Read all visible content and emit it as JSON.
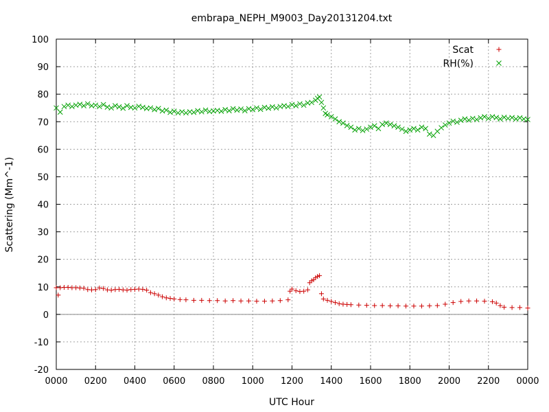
{
  "chart_data": {
    "type": "scatter",
    "title": "embrapa_NEPH_M9003_Day20131204.txt",
    "xlabel": "UTC Hour",
    "ylabel": "Scattering (Mm^-1)",
    "xlim": [
      0,
      24
    ],
    "ylim": [
      -20,
      100
    ],
    "x_ticks": [
      0,
      2,
      4,
      6,
      8,
      10,
      12,
      14,
      16,
      18,
      20,
      22,
      24
    ],
    "x_tick_labels": [
      "0000",
      "0200",
      "0400",
      "0600",
      "0800",
      "1000",
      "1200",
      "1400",
      "1600",
      "1800",
      "2000",
      "2200",
      "0000"
    ],
    "y_ticks": [
      -20,
      -10,
      0,
      10,
      20,
      30,
      40,
      50,
      60,
      70,
      80,
      90,
      100
    ],
    "y_tick_labels": [
      "-20",
      "-10",
      "0",
      "10",
      "20",
      "30",
      "40",
      "50",
      "60",
      "70",
      "80",
      "90",
      "100"
    ],
    "grid": true,
    "zero_line": true,
    "legend_position": "top-right",
    "series": [
      {
        "name": "Scat",
        "marker": "plus",
        "color": "#cc0000",
        "points": [
          [
            0.0,
            9.7
          ],
          [
            0.1,
            7.0
          ],
          [
            0.2,
            9.7
          ],
          [
            0.4,
            9.8
          ],
          [
            0.6,
            9.8
          ],
          [
            0.8,
            9.7
          ],
          [
            1.0,
            9.7
          ],
          [
            1.2,
            9.6
          ],
          [
            1.4,
            9.5
          ],
          [
            1.6,
            9.0
          ],
          [
            1.8,
            8.9
          ],
          [
            2.0,
            9.0
          ],
          [
            2.2,
            9.6
          ],
          [
            2.4,
            9.4
          ],
          [
            2.6,
            8.9
          ],
          [
            2.8,
            8.8
          ],
          [
            3.0,
            9.0
          ],
          [
            3.2,
            9.1
          ],
          [
            3.4,
            8.9
          ],
          [
            3.6,
            8.8
          ],
          [
            3.8,
            9.0
          ],
          [
            4.0,
            9.1
          ],
          [
            4.2,
            9.2
          ],
          [
            4.4,
            9.1
          ],
          [
            4.6,
            8.8
          ],
          [
            4.8,
            7.9
          ],
          [
            5.0,
            7.5
          ],
          [
            5.2,
            7.0
          ],
          [
            5.4,
            6.4
          ],
          [
            5.6,
            6.0
          ],
          [
            5.8,
            5.8
          ],
          [
            6.0,
            5.6
          ],
          [
            6.3,
            5.4
          ],
          [
            6.6,
            5.3
          ],
          [
            7.0,
            5.1
          ],
          [
            7.4,
            5.1
          ],
          [
            7.8,
            5.0
          ],
          [
            8.2,
            5.0
          ],
          [
            8.6,
            4.9
          ],
          [
            9.0,
            5.0
          ],
          [
            9.4,
            4.9
          ],
          [
            9.8,
            4.9
          ],
          [
            10.2,
            4.8
          ],
          [
            10.6,
            4.8
          ],
          [
            11.0,
            4.9
          ],
          [
            11.4,
            5.0
          ],
          [
            11.8,
            5.3
          ],
          [
            11.9,
            8.4
          ],
          [
            12.0,
            9.2
          ],
          [
            12.2,
            8.6
          ],
          [
            12.4,
            8.3
          ],
          [
            12.6,
            8.4
          ],
          [
            12.8,
            8.9
          ],
          [
            12.9,
            11.5
          ],
          [
            13.0,
            12.2
          ],
          [
            13.1,
            12.6
          ],
          [
            13.2,
            13.3
          ],
          [
            13.3,
            13.8
          ],
          [
            13.4,
            14.1
          ],
          [
            13.5,
            7.5
          ],
          [
            13.6,
            5.6
          ],
          [
            13.8,
            5.1
          ],
          [
            14.0,
            4.7
          ],
          [
            14.2,
            4.3
          ],
          [
            14.4,
            3.9
          ],
          [
            14.6,
            3.7
          ],
          [
            14.8,
            3.6
          ],
          [
            15.0,
            3.5
          ],
          [
            15.4,
            3.4
          ],
          [
            15.8,
            3.3
          ],
          [
            16.2,
            3.2
          ],
          [
            16.6,
            3.2
          ],
          [
            17.0,
            3.1
          ],
          [
            17.4,
            3.1
          ],
          [
            17.8,
            3.0
          ],
          [
            18.2,
            3.0
          ],
          [
            18.6,
            3.0
          ],
          [
            19.0,
            3.1
          ],
          [
            19.4,
            3.2
          ],
          [
            19.8,
            3.7
          ],
          [
            20.2,
            4.3
          ],
          [
            20.6,
            4.7
          ],
          [
            21.0,
            4.9
          ],
          [
            21.4,
            4.9
          ],
          [
            21.8,
            4.8
          ],
          [
            22.2,
            4.6
          ],
          [
            22.4,
            4.1
          ],
          [
            22.6,
            3.2
          ],
          [
            22.8,
            2.6
          ],
          [
            23.2,
            2.5
          ],
          [
            23.6,
            2.5
          ],
          [
            24.0,
            2.3
          ]
        ]
      },
      {
        "name": "RH(%)",
        "marker": "cross",
        "color": "#00a000",
        "points": [
          [
            0.0,
            75.0
          ],
          [
            0.2,
            73.5
          ],
          [
            0.4,
            75.5
          ],
          [
            0.6,
            76.0
          ],
          [
            0.8,
            75.5
          ],
          [
            1.0,
            76.0
          ],
          [
            1.2,
            76.3
          ],
          [
            1.4,
            75.8
          ],
          [
            1.6,
            76.5
          ],
          [
            1.8,
            75.8
          ],
          [
            2.0,
            76.0
          ],
          [
            2.2,
            75.5
          ],
          [
            2.4,
            76.2
          ],
          [
            2.6,
            75.3
          ],
          [
            2.8,
            75.0
          ],
          [
            3.0,
            75.8
          ],
          [
            3.2,
            75.4
          ],
          [
            3.4,
            74.9
          ],
          [
            3.6,
            75.8
          ],
          [
            3.8,
            75.2
          ],
          [
            4.0,
            75.0
          ],
          [
            4.2,
            75.6
          ],
          [
            4.4,
            75.2
          ],
          [
            4.6,
            74.8
          ],
          [
            4.8,
            75.0
          ],
          [
            5.0,
            74.4
          ],
          [
            5.2,
            74.8
          ],
          [
            5.4,
            73.9
          ],
          [
            5.6,
            74.2
          ],
          [
            5.8,
            73.4
          ],
          [
            6.0,
            73.8
          ],
          [
            6.2,
            73.2
          ],
          [
            6.4,
            73.6
          ],
          [
            6.6,
            73.2
          ],
          [
            6.8,
            73.6
          ],
          [
            7.0,
            73.4
          ],
          [
            7.2,
            74.0
          ],
          [
            7.4,
            73.6
          ],
          [
            7.6,
            74.2
          ],
          [
            7.8,
            73.7
          ],
          [
            8.0,
            73.9
          ],
          [
            8.2,
            74.1
          ],
          [
            8.4,
            73.8
          ],
          [
            8.6,
            74.4
          ],
          [
            8.8,
            74.0
          ],
          [
            9.0,
            74.7
          ],
          [
            9.2,
            74.2
          ],
          [
            9.4,
            74.6
          ],
          [
            9.6,
            74.0
          ],
          [
            9.8,
            74.7
          ],
          [
            10.0,
            74.4
          ],
          [
            10.2,
            75.0
          ],
          [
            10.4,
            74.5
          ],
          [
            10.6,
            75.2
          ],
          [
            10.8,
            74.9
          ],
          [
            11.0,
            75.4
          ],
          [
            11.2,
            75.0
          ],
          [
            11.4,
            75.5
          ],
          [
            11.6,
            75.8
          ],
          [
            11.8,
            75.5
          ],
          [
            12.0,
            76.2
          ],
          [
            12.2,
            75.8
          ],
          [
            12.4,
            76.5
          ],
          [
            12.6,
            76.0
          ],
          [
            12.8,
            76.8
          ],
          [
            13.0,
            77.0
          ],
          [
            13.2,
            77.8
          ],
          [
            13.3,
            78.5
          ],
          [
            13.4,
            79.0
          ],
          [
            13.5,
            77.0
          ],
          [
            13.6,
            75.0
          ],
          [
            13.7,
            73.0
          ],
          [
            13.8,
            72.5
          ],
          [
            14.0,
            71.8
          ],
          [
            14.2,
            71.0
          ],
          [
            14.4,
            70.0
          ],
          [
            14.6,
            69.5
          ],
          [
            14.8,
            68.6
          ],
          [
            15.0,
            68.0
          ],
          [
            15.2,
            67.0
          ],
          [
            15.4,
            67.5
          ],
          [
            15.6,
            66.8
          ],
          [
            15.8,
            67.3
          ],
          [
            16.0,
            68.0
          ],
          [
            16.2,
            68.5
          ],
          [
            16.4,
            67.5
          ],
          [
            16.6,
            69.0
          ],
          [
            16.8,
            69.5
          ],
          [
            17.0,
            69.0
          ],
          [
            17.2,
            68.5
          ],
          [
            17.4,
            68.0
          ],
          [
            17.6,
            67.3
          ],
          [
            17.8,
            66.5
          ],
          [
            18.0,
            67.0
          ],
          [
            18.2,
            67.5
          ],
          [
            18.4,
            67.0
          ],
          [
            18.6,
            68.0
          ],
          [
            18.8,
            67.5
          ],
          [
            19.0,
            65.5
          ],
          [
            19.2,
            65.0
          ],
          [
            19.4,
            66.5
          ],
          [
            19.6,
            67.8
          ],
          [
            19.8,
            68.8
          ],
          [
            20.0,
            69.5
          ],
          [
            20.2,
            70.2
          ],
          [
            20.4,
            69.8
          ],
          [
            20.6,
            70.5
          ],
          [
            20.8,
            71.0
          ],
          [
            21.0,
            70.6
          ],
          [
            21.2,
            71.2
          ],
          [
            21.4,
            70.8
          ],
          [
            21.6,
            71.4
          ],
          [
            21.8,
            71.8
          ],
          [
            22.0,
            71.2
          ],
          [
            22.2,
            71.8
          ],
          [
            22.4,
            71.5
          ],
          [
            22.6,
            71.0
          ],
          [
            22.8,
            71.6
          ],
          [
            23.0,
            71.2
          ],
          [
            23.2,
            71.5
          ],
          [
            23.4,
            71.0
          ],
          [
            23.6,
            71.4
          ],
          [
            23.8,
            71.0
          ],
          [
            24.0,
            70.8
          ]
        ]
      }
    ]
  }
}
